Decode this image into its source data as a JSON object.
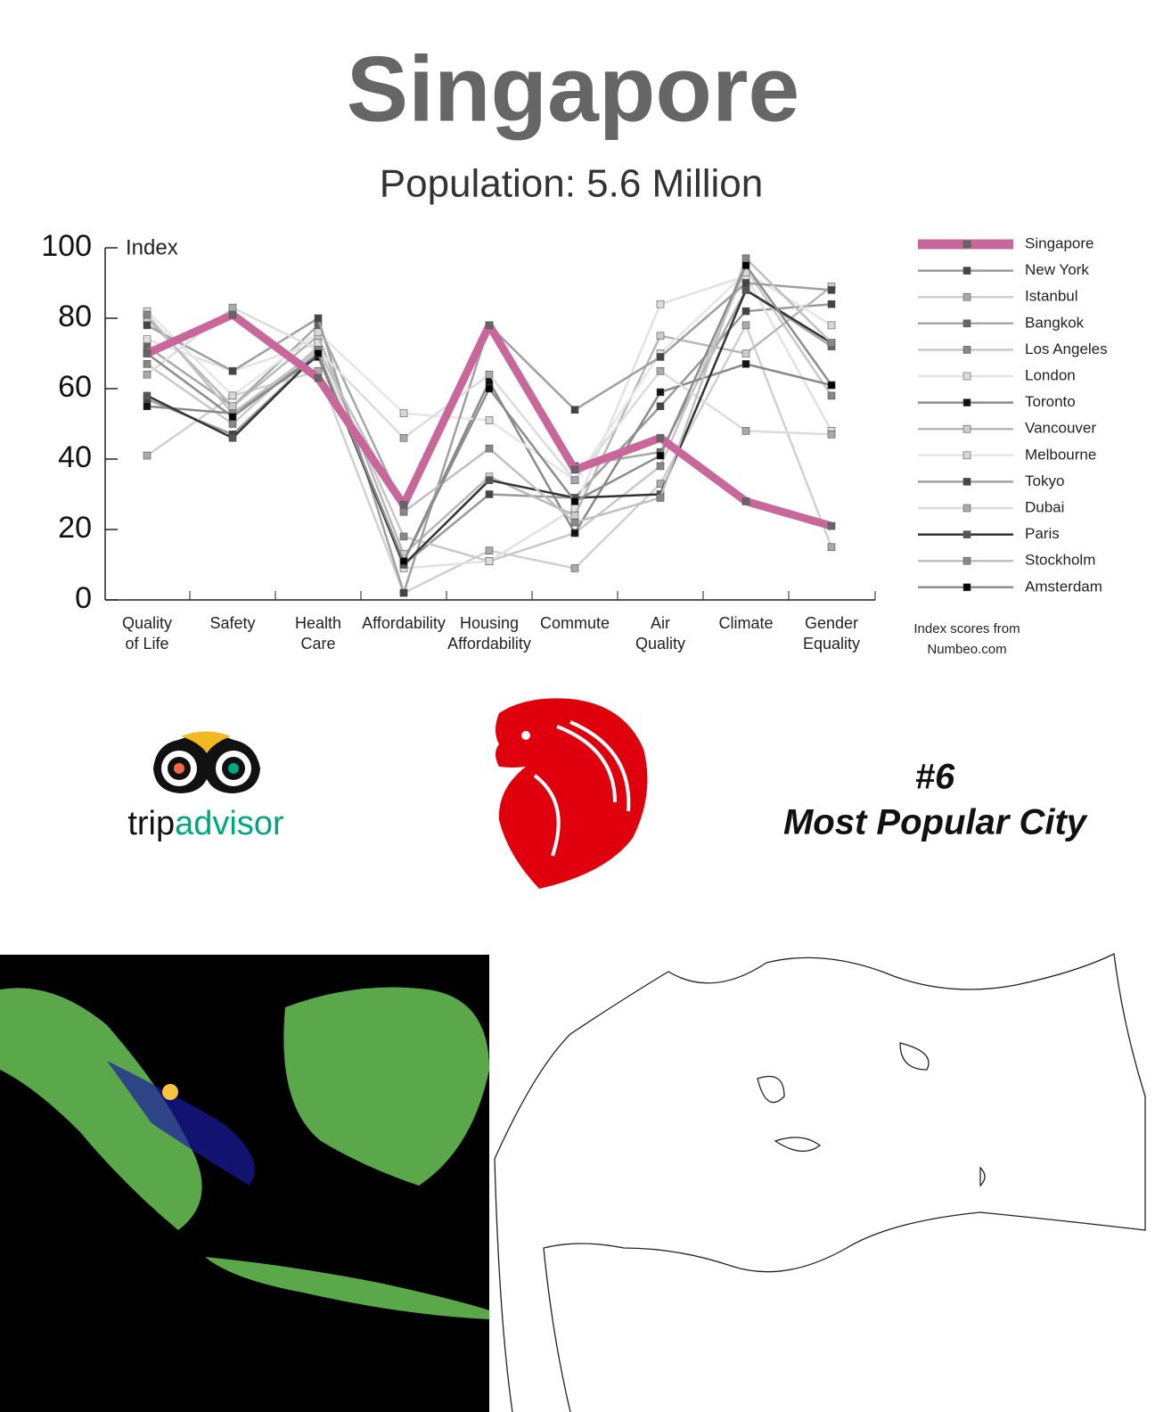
{
  "title": "Singapore",
  "subtitle": "Population: 5.6 Million",
  "source_note": "Index scores from\nNumbeo.com",
  "logo": {
    "prefix": "trip",
    "suffix": "advisor"
  },
  "rank": "#6",
  "rank_label": "Most Popular City",
  "chart_data": {
    "type": "line",
    "y_label": "Index",
    "categories": [
      "Quality\nof Life",
      "Safety",
      "Health\nCare",
      "Affordability",
      "Housing\nAffordability",
      "Commute",
      "Air\nQuality",
      "Climate",
      "Gender\nEquality"
    ],
    "ylim": [
      0,
      100
    ],
    "yticks": [
      0,
      20,
      40,
      60,
      80,
      100
    ],
    "legend": "right",
    "series": [
      {
        "name": "Singapore",
        "color": "#c8679a",
        "marker_color": "#666666",
        "values": [
          70,
          81,
          63,
          27,
          78,
          37,
          46,
          28,
          21
        ]
      },
      {
        "name": "New York",
        "color": "#9a9a9a",
        "marker_color": "#444444",
        "values": [
          57,
          47,
          70,
          10,
          30,
          29,
          55,
          82,
          84
        ]
      },
      {
        "name": "Istanbul",
        "color": "#d0d0d0",
        "marker_color": "#aaaaaa",
        "values": [
          41,
          58,
          65,
          2,
          14,
          9,
          33,
          78,
          15
        ]
      },
      {
        "name": "Bangkok",
        "color": "#a8a8a8",
        "marker_color": "#666666",
        "values": [
          72,
          55,
          78,
          26,
          78,
          38,
          42,
          88,
          72
        ]
      },
      {
        "name": "Los Angeles",
        "color": "#c8c8c8",
        "marker_color": "#888888",
        "values": [
          67,
          50,
          72,
          18,
          11,
          19,
          38,
          94,
          58
        ]
      },
      {
        "name": "London",
        "color": "#e2e2e2",
        "marker_color": "#dddddd",
        "values": [
          74,
          65,
          73,
          9,
          11,
          26,
          84,
          92,
          48
        ]
      },
      {
        "name": "Toronto",
        "color": "#8a8a8a",
        "marker_color": "#111111",
        "values": [
          55,
          53,
          69,
          11,
          62,
          19,
          59,
          67,
          61
        ]
      },
      {
        "name": "Vancouver",
        "color": "#b8b8b8",
        "marker_color": "#cccccc",
        "values": [
          80,
          55,
          75,
          13,
          35,
          24,
          75,
          70,
          89
        ]
      },
      {
        "name": "Melbourne",
        "color": "#e6e6e6",
        "marker_color": "#d8d8d8",
        "values": [
          82,
          58,
          76,
          53,
          51,
          34,
          70,
          93,
          78
        ]
      },
      {
        "name": "Tokyo",
        "color": "#a0a0a0",
        "marker_color": "#444444",
        "values": [
          78,
          65,
          80,
          2,
          78,
          54,
          69,
          90,
          88
        ]
      },
      {
        "name": "Dubai",
        "color": "#dcdcdc",
        "marker_color": "#aaaaaa",
        "values": [
          64,
          83,
          71,
          46,
          64,
          34,
          65,
          48,
          47
        ]
      },
      {
        "name": "Paris",
        "color": "#333333",
        "marker_color": "#555555",
        "values": [
          58,
          46,
          70,
          10,
          34,
          29,
          30,
          88,
          73
        ]
      },
      {
        "name": "Stockholm",
        "color": "#c0c0c0",
        "marker_color": "#888888",
        "values": [
          81,
          53,
          71,
          25,
          43,
          22,
          29,
          97,
          73
        ]
      },
      {
        "name": "Amsterdam",
        "color": "#8c8c8c",
        "marker_color": "#000000",
        "values": [
          70,
          52,
          70,
          11,
          60,
          28,
          41,
          95,
          61
        ]
      }
    ]
  }
}
